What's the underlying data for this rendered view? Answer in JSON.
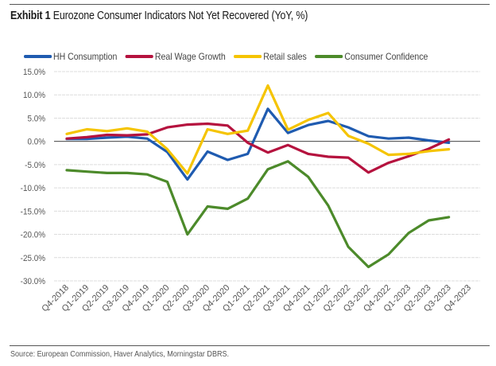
{
  "header": {
    "exhibit": "Exhibit 1",
    "title": "Eurozone Consumer Indicators Not Yet Recovered (YoY, %)"
  },
  "footer": {
    "source": "Source: European Commission, Haver Analytics, Morningstar DBRS."
  },
  "chart_data": {
    "type": "line",
    "title": "Eurozone Consumer Indicators Not Yet Recovered (YoY, %)",
    "xlabel": "",
    "ylabel": "",
    "ylim": [
      -30,
      15
    ],
    "yticks": [
      15,
      10,
      5,
      0,
      -5,
      -10,
      -15,
      -20,
      -25,
      -30
    ],
    "ytick_labels": [
      "15.0%",
      "10.0%",
      "5.0%",
      "0.0%",
      "-5.0%",
      "-10.0%",
      "-15.0%",
      "-20.0%",
      "-25.0%",
      "-30.0%"
    ],
    "grid": true,
    "legend_position": "top",
    "categories": [
      "Q4-2018",
      "Q1-2019",
      "Q2-2019",
      "Q3-2019",
      "Q4-2019",
      "Q1-2020",
      "Q2-2020",
      "Q3-2020",
      "Q4-2020",
      "Q1-2021",
      "Q2-2021",
      "Q3-2021",
      "Q4-2021",
      "Q1-2022",
      "Q2-2022",
      "Q3-2022",
      "Q4-2022",
      "Q1-2023",
      "Q2-2023",
      "Q3-2023",
      "Q4-2023"
    ],
    "series": [
      {
        "name": "HH Consumption",
        "color": "#1F5BB0",
        "values": [
          0.5,
          0.5,
          0.8,
          1.0,
          0.6,
          -2.3,
          -8.2,
          -2.2,
          -4.0,
          -2.7,
          7.0,
          1.8,
          3.5,
          4.4,
          3.0,
          1.1,
          0.6,
          0.8,
          0.2,
          -0.3,
          null
        ]
      },
      {
        "name": "Real Wage Growth",
        "color": "#B5123E",
        "values": [
          0.6,
          0.9,
          1.4,
          1.3,
          1.5,
          3.0,
          3.6,
          3.8,
          3.4,
          -0.3,
          -2.4,
          -0.8,
          -2.7,
          -3.3,
          -3.5,
          -6.7,
          -4.6,
          -3.2,
          -1.6,
          0.4,
          null
        ]
      },
      {
        "name": "Retail sales",
        "color": "#F5C400",
        "values": [
          1.6,
          2.6,
          2.2,
          2.8,
          2.1,
          -1.7,
          -6.9,
          2.6,
          1.6,
          2.3,
          12.0,
          2.5,
          4.6,
          6.1,
          1.2,
          -0.5,
          -2.9,
          -2.7,
          -2.1,
          -1.7,
          null
        ]
      },
      {
        "name": "Consumer Confidence",
        "color": "#4C8A2A",
        "values": [
          -6.2,
          -6.5,
          -6.8,
          -6.8,
          -7.1,
          -8.7,
          -20.0,
          -14.0,
          -14.5,
          -12.3,
          -6.0,
          -4.3,
          -7.6,
          -13.8,
          -22.7,
          -27.0,
          -24.3,
          -19.7,
          -17.0,
          -16.3,
          null
        ]
      }
    ]
  }
}
